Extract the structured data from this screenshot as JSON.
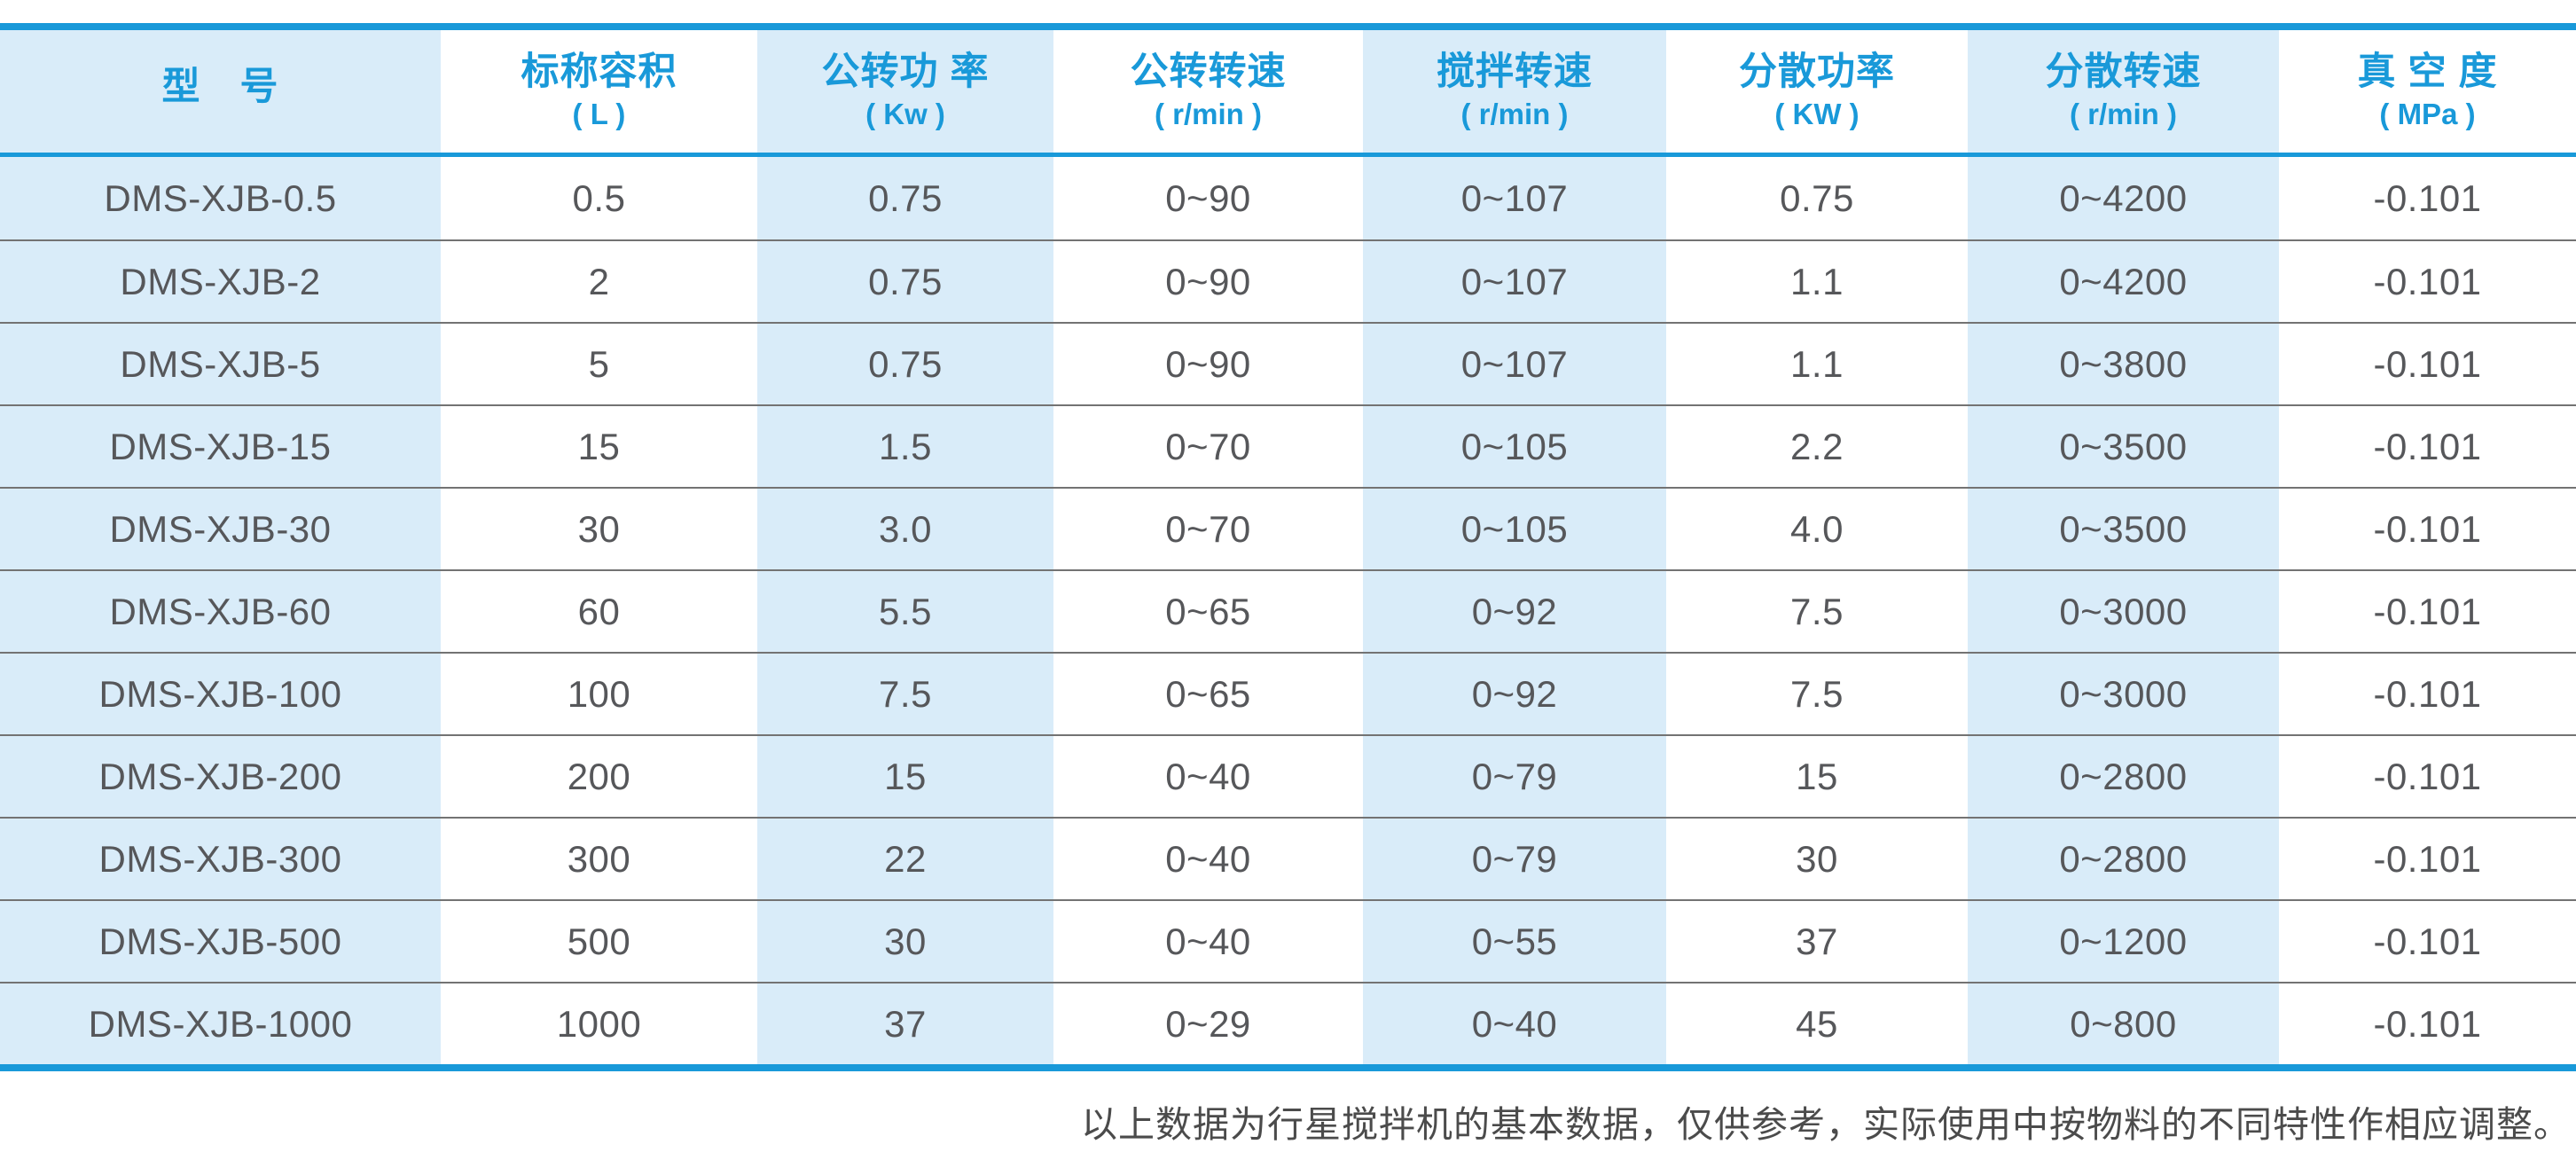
{
  "accent_color": "#1999d9",
  "stripe_color": "#d9ecf9",
  "table": {
    "columns": [
      {
        "title": "型　号",
        "unit": ""
      },
      {
        "title": "标称容积",
        "unit": "( L )"
      },
      {
        "title": "公转功 率",
        "unit": "( Kw )"
      },
      {
        "title": "公转转速",
        "unit": "( r/min )"
      },
      {
        "title": "搅拌转速",
        "unit": "( r/min )"
      },
      {
        "title": "分散功率",
        "unit": "( KW )"
      },
      {
        "title": "分散转速",
        "unit": "( r/min )"
      },
      {
        "title": "真 空 度",
        "unit": "( MPa )"
      }
    ],
    "rows": [
      [
        "DMS-XJB-0.5",
        "0.5",
        "0.75",
        "0~90",
        "0~107",
        "0.75",
        "0~4200",
        "-0.101"
      ],
      [
        "DMS-XJB-2",
        "2",
        "0.75",
        "0~90",
        "0~107",
        "1.1",
        "0~4200",
        "-0.101"
      ],
      [
        "DMS-XJB-5",
        "5",
        "0.75",
        "0~90",
        "0~107",
        "1.1",
        "0~3800",
        "-0.101"
      ],
      [
        "DMS-XJB-15",
        "15",
        "1.5",
        "0~70",
        "0~105",
        "2.2",
        "0~3500",
        "-0.101"
      ],
      [
        "DMS-XJB-30",
        "30",
        "3.0",
        "0~70",
        "0~105",
        "4.0",
        "0~3500",
        "-0.101"
      ],
      [
        "DMS-XJB-60",
        "60",
        "5.5",
        "0~65",
        "0~92",
        "7.5",
        "0~3000",
        "-0.101"
      ],
      [
        "DMS-XJB-100",
        "100",
        "7.5",
        "0~65",
        "0~92",
        "7.5",
        "0~3000",
        "-0.101"
      ],
      [
        "DMS-XJB-200",
        "200",
        "15",
        "0~40",
        "0~79",
        "15",
        "0~2800",
        "-0.101"
      ],
      [
        "DMS-XJB-300",
        "300",
        "22",
        "0~40",
        "0~79",
        "30",
        "0~2800",
        "-0.101"
      ],
      [
        "DMS-XJB-500",
        "500",
        "30",
        "0~40",
        "0~55",
        "37",
        "0~1200",
        "-0.101"
      ],
      [
        "DMS-XJB-1000",
        "1000",
        "37",
        "0~29",
        "0~40",
        "45",
        "0~800",
        "-0.101"
      ]
    ]
  },
  "footer": {
    "note": "以上数据为行星搅拌机的基本数据，仅供参考，实际使用中按物料的不同特性作相应调整。"
  }
}
